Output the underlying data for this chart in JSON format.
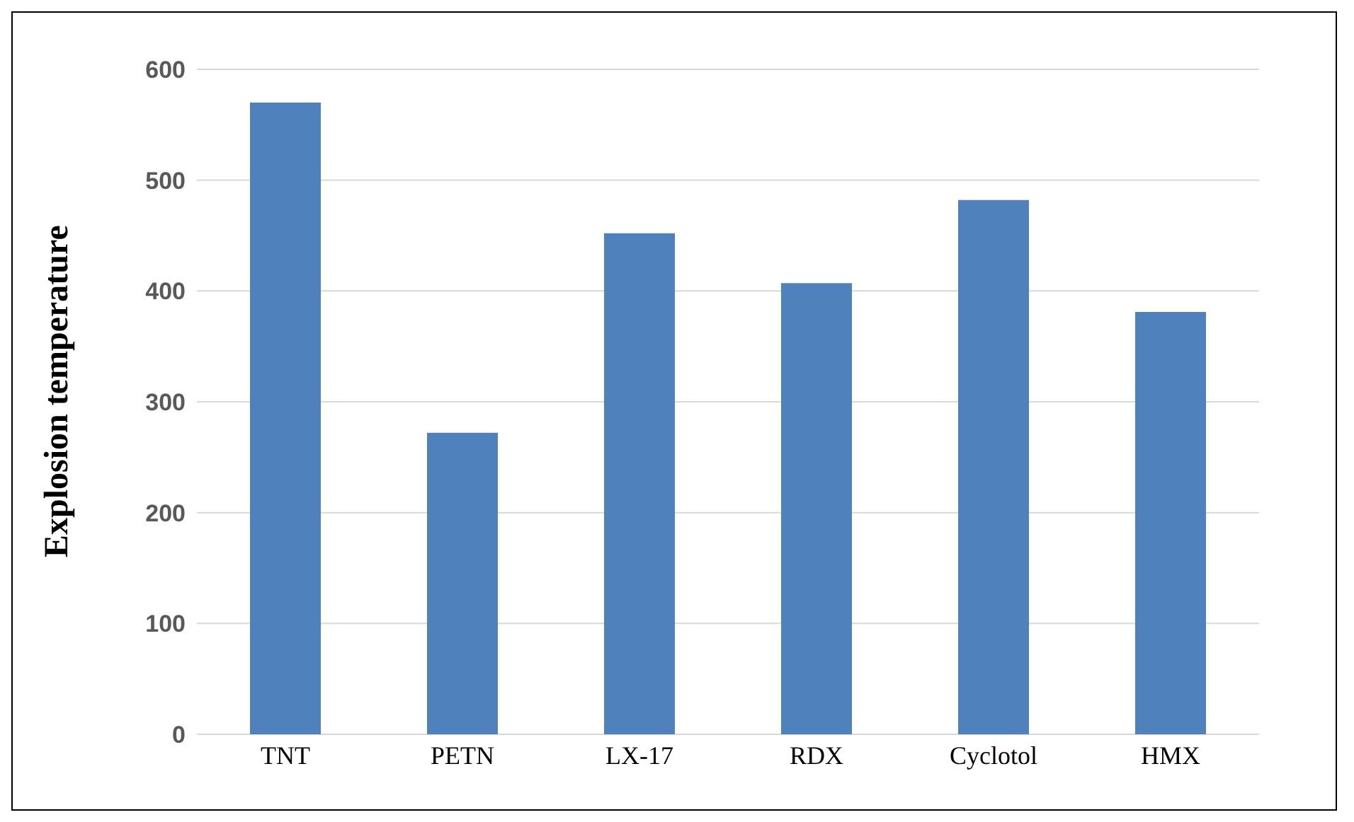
{
  "chart_data": {
    "type": "bar",
    "ylabel": "Explosion temperature",
    "categories": [
      "TNT",
      "PETN",
      "LX-17",
      "RDX",
      "Cyclotol",
      "HMX"
    ],
    "values": [
      570,
      272,
      452,
      407,
      482,
      381
    ],
    "color": "#4f81bd",
    "ylim": [
      0,
      600
    ],
    "yticks": [
      0,
      100,
      200,
      300,
      400,
      500,
      600
    ],
    "grid": "y"
  }
}
